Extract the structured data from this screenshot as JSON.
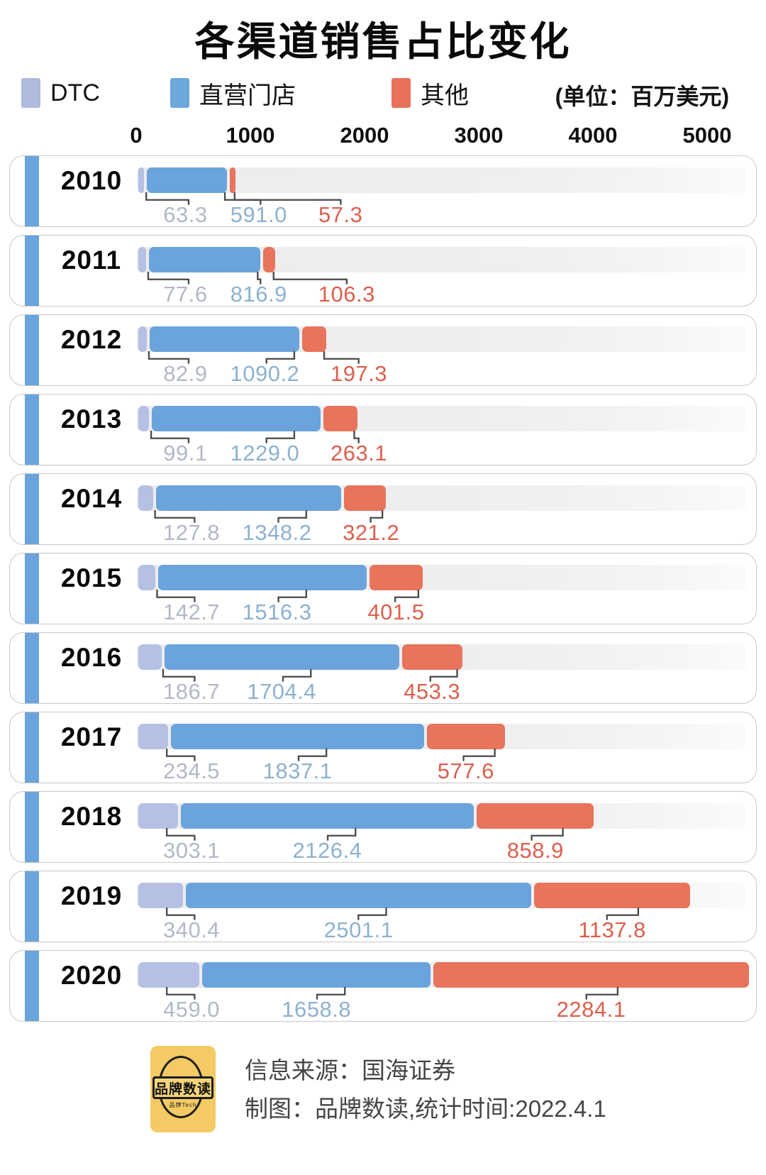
{
  "title": "各渠道销售占比变化",
  "unit_note": "(单位：百万美元)",
  "legend": [
    {
      "label": "DTC",
      "color": "#aebbdf"
    },
    {
      "label": "直营门店",
      "color": "#6ea7dc"
    },
    {
      "label": "其他",
      "color": "#e8715a"
    }
  ],
  "axis": {
    "ticks": [
      "0",
      "1000",
      "2000",
      "3000",
      "4000",
      "5000"
    ]
  },
  "chart_data": {
    "type": "bar",
    "orientation": "horizontal",
    "stacked": true,
    "title": "各渠道销售占比变化",
    "unit": "百万美元",
    "categories": [
      "2010",
      "2011",
      "2012",
      "2013",
      "2014",
      "2015",
      "2016",
      "2017",
      "2018",
      "2019",
      "2020"
    ],
    "series": [
      {
        "name": "DTC",
        "color": "#b6c0e4",
        "label_color": "#b2b8c8",
        "values": [
          63.3,
          77.6,
          82.9,
          99.1,
          127.8,
          142.7,
          186.7,
          234.5,
          303.1,
          340.4,
          459.0
        ]
      },
      {
        "name": "直营门店",
        "color": "#6ba4dc",
        "label_color": "#8db1d0",
        "values": [
          591.0,
          816.9,
          1090.2,
          1229.0,
          1348.2,
          1516.3,
          1704.4,
          1837.1,
          2126.4,
          2501.1,
          1658.8
        ]
      },
      {
        "name": "其他",
        "color": "#e8745c",
        "label_color": "#dd5f4d",
        "values": [
          57.3,
          106.3,
          197.3,
          263.1,
          321.2,
          401.5,
          453.3,
          577.6,
          858.9,
          1137.8,
          2284.1
        ]
      }
    ],
    "xlim": [
      0,
      5000
    ],
    "legend_position": "top",
    "grid": false
  },
  "footer": {
    "source": "信息来源：国海证券",
    "credit": "制图：品牌数读,统计时间:2022.4.1",
    "logo_text": "品牌数读",
    "logo_sub": "品牌Tech"
  }
}
